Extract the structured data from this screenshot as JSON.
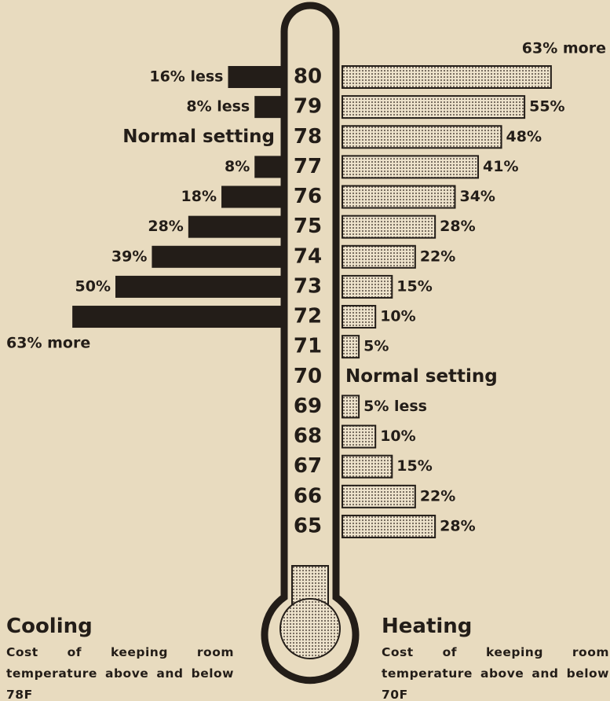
{
  "chart_data": {
    "type": "bar",
    "categories": [
      "80",
      "79",
      "78",
      "77",
      "76",
      "75",
      "74",
      "73",
      "72",
      "71",
      "70",
      "69",
      "68",
      "67",
      "66",
      "65"
    ],
    "series": [
      {
        "name": "Cooling",
        "description": "Cost of keeping room temperature above and below 78F",
        "color": "#231d18",
        "values": [
          16,
          8,
          null,
          8,
          18,
          28,
          39,
          50,
          63,
          null,
          null,
          null,
          null,
          null,
          null,
          null
        ],
        "value_labels": [
          "16% less",
          "8% less",
          null,
          "8%",
          "18%",
          "28%",
          "39%",
          "50%",
          "63% more",
          null,
          null,
          null,
          null,
          null,
          null,
          null
        ]
      },
      {
        "name": "Heating",
        "description": "Cost of keeping room temperature above and below 70F",
        "color": "#6d6255",
        "values": [
          63,
          55,
          48,
          41,
          34,
          28,
          22,
          15,
          10,
          5,
          null,
          5,
          10,
          15,
          22,
          28
        ],
        "value_labels": [
          "63% more",
          "55%",
          "48%",
          "41%",
          "34%",
          "28%",
          "22%",
          "15%",
          "10%",
          "5%",
          null,
          "5% less",
          "10%",
          "15%",
          "22%",
          "28%"
        ]
      }
    ],
    "annotations": [
      {
        "text": "Normal setting",
        "category": "78",
        "series": "Cooling"
      },
      {
        "text": "Normal setting",
        "category": "70",
        "series": "Heating"
      }
    ]
  }
}
